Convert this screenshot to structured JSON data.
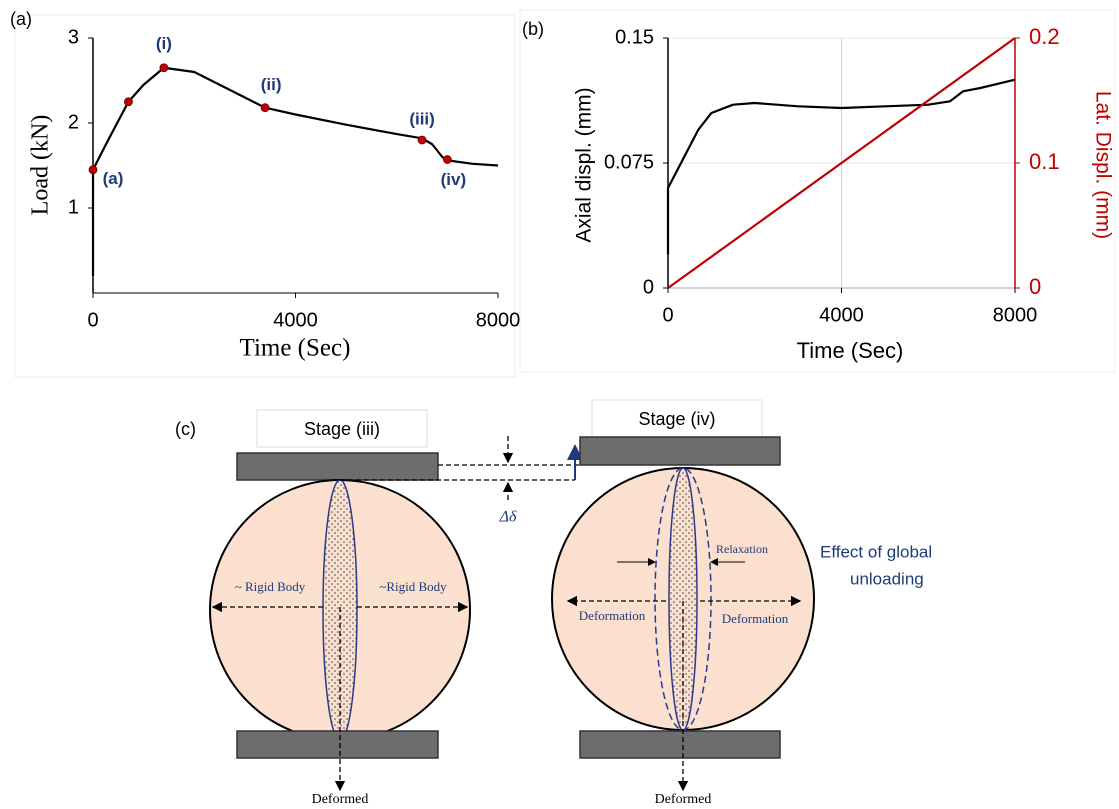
{
  "chart_data": [
    {
      "type": "line",
      "panel_label": "(a)",
      "xlabel": "Time (Sec)",
      "ylabel": "Load (kN)",
      "xlim": [
        0,
        8000
      ],
      "ylim": [
        0,
        3
      ],
      "xticks": [
        0,
        4000,
        8000
      ],
      "yticks": [
        1,
        2,
        3
      ],
      "series": [
        {
          "color": "#000000",
          "x": [
            0,
            0,
            300,
            700,
            1000,
            1400,
            2000,
            2500,
            3000,
            3400,
            4000,
            5000,
            6000,
            6500,
            6700,
            6900,
            7000,
            7500,
            8000
          ],
          "values": [
            0.2,
            1.45,
            1.8,
            2.25,
            2.45,
            2.65,
            2.6,
            2.45,
            2.3,
            2.18,
            2.1,
            1.98,
            1.87,
            1.82,
            1.75,
            1.6,
            1.56,
            1.52,
            1.5
          ]
        }
      ],
      "points": {
        "color": "#c00000",
        "label_color": "#1f3a7a",
        "x": [
          0,
          700,
          1400,
          3400,
          6500,
          7000
        ],
        "values": [
          1.45,
          2.25,
          2.65,
          2.18,
          1.8,
          1.57
        ],
        "labels": [
          "(a)",
          null,
          "(i)",
          "(ii)",
          "(iii)",
          "(iv)"
        ]
      }
    },
    {
      "type": "line",
      "panel_label": "(b)",
      "xlabel": "Time (Sec)",
      "ylabel": "Axial displ. (mm)",
      "y2label": "Lat. Displ. (mm)",
      "y2color": "#c00000",
      "grid": true,
      "xlim": [
        0,
        8000
      ],
      "ylim": [
        0,
        0.15
      ],
      "y2lim": [
        0,
        0.2
      ],
      "xticks": [
        0,
        4000,
        8000
      ],
      "yticks": [
        0,
        0.075,
        0.15
      ],
      "y2ticks": [
        0,
        0.1,
        0.2
      ],
      "series": [
        {
          "color": "#000000",
          "x": [
            0,
            0,
            300,
            700,
            1000,
            1500,
            2000,
            3000,
            4000,
            5000,
            6000,
            6500,
            6800,
            7200,
            8000
          ],
          "values": [
            0.02,
            0.06,
            0.075,
            0.095,
            0.105,
            0.11,
            0.111,
            0.109,
            0.108,
            0.109,
            0.11,
            0.112,
            0.118,
            0.12,
            0.125
          ]
        },
        {
          "color": "#c00000",
          "axis": "y2",
          "x": [
            0,
            8000
          ],
          "values": [
            0,
            0.2
          ]
        }
      ]
    }
  ],
  "diagram": {
    "label": "(c)",
    "gap": "Δδ",
    "stages": [
      {
        "title": "Stage (iii)",
        "left": "~ Rigid Body",
        "right": "~Rigid Body",
        "bottom": "Deformed"
      },
      {
        "title": "Stage (iv)",
        "left": "Deformation",
        "right": "Deformation",
        "bottom": "Deformed",
        "inner": "Relaxation",
        "note": [
          "Effect of global",
          "unloading"
        ]
      }
    ]
  }
}
